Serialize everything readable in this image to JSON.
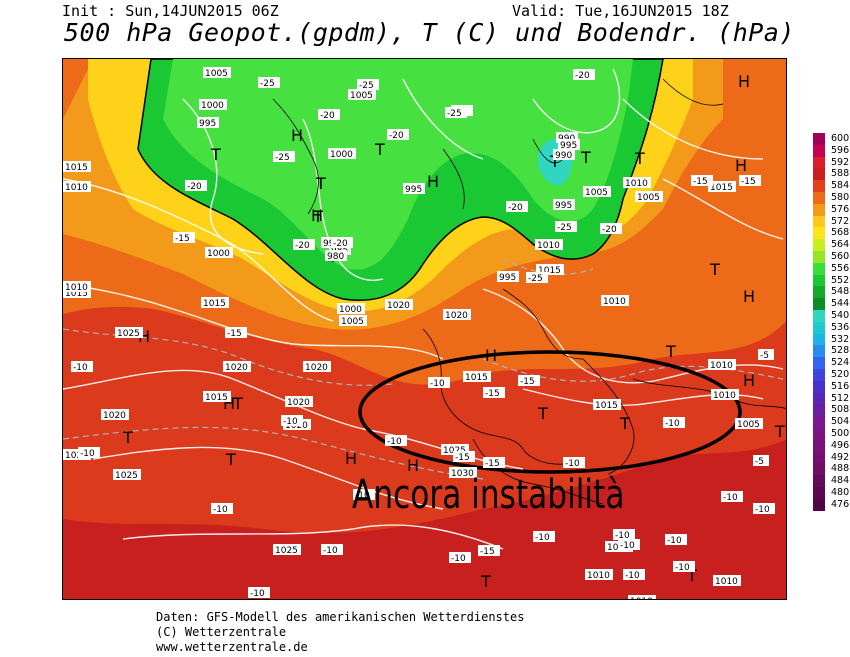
{
  "header": {
    "init": "Init : Sun,14JUN2015 06Z",
    "valid": "Valid: Tue,16JUN2015 18Z",
    "title": "500 hPa Geopot.(gpdm), T (C) und Bodendr. (hPa)"
  },
  "map": {
    "annotation": "Ancora instabilità",
    "colors": {
      "deep_red": "#c8201e",
      "red": "#e0401c",
      "orange": "#ec6a18",
      "orange_light": "#f39a1a",
      "yellow": "#ffe41a",
      "green": "#19c832",
      "green_light": "#3cdc3c",
      "cyan": "#30d6c0",
      "isobar": "#ffffff",
      "coast": "#000000"
    },
    "symbols": [
      {
        "text": "H"
      },
      {
        "text": "H"
      },
      {
        "text": "H"
      },
      {
        "text": "H"
      },
      {
        "text": "H"
      },
      {
        "text": "H"
      },
      {
        "text": "H"
      },
      {
        "text": "H"
      },
      {
        "text": "H"
      },
      {
        "text": "H"
      },
      {
        "text": "H"
      },
      {
        "text": "H"
      },
      {
        "text": "T"
      },
      {
        "text": "T"
      },
      {
        "text": "T"
      },
      {
        "text": "T"
      },
      {
        "text": "T"
      },
      {
        "text": "T"
      },
      {
        "text": "T"
      },
      {
        "text": "T"
      },
      {
        "text": "T"
      },
      {
        "text": "T"
      },
      {
        "text": "T"
      },
      {
        "text": "T"
      },
      {
        "text": "T"
      },
      {
        "text": "T"
      },
      {
        "text": "T"
      },
      {
        "text": "T"
      },
      {
        "text": "T"
      },
      {
        "text": "T"
      }
    ],
    "isobar_labels": [
      "1005",
      "1000",
      "995",
      "1015",
      "1010",
      "1000",
      "1005",
      "995",
      "990",
      "985",
      "1000",
      "1005",
      "1015",
      "1010",
      "1015",
      "1025",
      "1020",
      "1015",
      "1020",
      "1020",
      "1025",
      "1020",
      "1015",
      "1000",
      "1005",
      "990",
      "980",
      "995",
      "990",
      "1010",
      "1015",
      "1005",
      "1010",
      "1010",
      "1015",
      "1010",
      "1010",
      "1005",
      "1025",
      "1030",
      "1020",
      "1025",
      "1010",
      "1010",
      "1010",
      "1010",
      "1015",
      "995",
      "995",
      "1020",
      "1020",
      "1025"
    ],
    "temp_labels": [
      "-25",
      "-25",
      "-20",
      "-25",
      "-20",
      "-25",
      "-20",
      "-25",
      "-20",
      "-15",
      "-15",
      "-20",
      "-25",
      "-20",
      "-20",
      "-25",
      "-20",
      "-15",
      "-15",
      "-10",
      "-10",
      "-10",
      "-15",
      "-10",
      "-15",
      "-10",
      "-10",
      "-10",
      "-10",
      "-10",
      "-10",
      "-10",
      "-10",
      "-10",
      "-10",
      "-10",
      "-10",
      "-15",
      "-15",
      "-5",
      "-15",
      "-10",
      "-5",
      "-10",
      "-10",
      "-10"
    ]
  },
  "legend": {
    "values": [
      "600",
      "596",
      "592",
      "588",
      "584",
      "580",
      "576",
      "572",
      "568",
      "564",
      "560",
      "556",
      "552",
      "548",
      "544",
      "540",
      "536",
      "532",
      "528",
      "524",
      "520",
      "516",
      "512",
      "508",
      "504",
      "500",
      "496",
      "492",
      "488",
      "484",
      "480",
      "476"
    ],
    "colors": [
      "#a0005a",
      "#c80050",
      "#dc1e2c",
      "#c8201e",
      "#e0401c",
      "#ec6a18",
      "#f39a1a",
      "#ffc81a",
      "#ffe41a",
      "#c8f020",
      "#96e628",
      "#3cdc3c",
      "#19c832",
      "#14aa28",
      "#0c8c28",
      "#30d6c0",
      "#20c8d2",
      "#1eb4e6",
      "#288cf0",
      "#3264f0",
      "#3c46dc",
      "#4a32c8",
      "#5a28b4",
      "#6c1ea0",
      "#7a1890",
      "#7c1482",
      "#7a107a",
      "#761070",
      "#6e0c66",
      "#640a5a",
      "#5a0850",
      "#500646"
    ]
  },
  "footer": {
    "line1": "Daten: GFS-Modell des amerikanischen Wetterdienstes",
    "line2": "(C) Wetterzentrale",
    "line3": "www.wetterzentrale.de"
  }
}
